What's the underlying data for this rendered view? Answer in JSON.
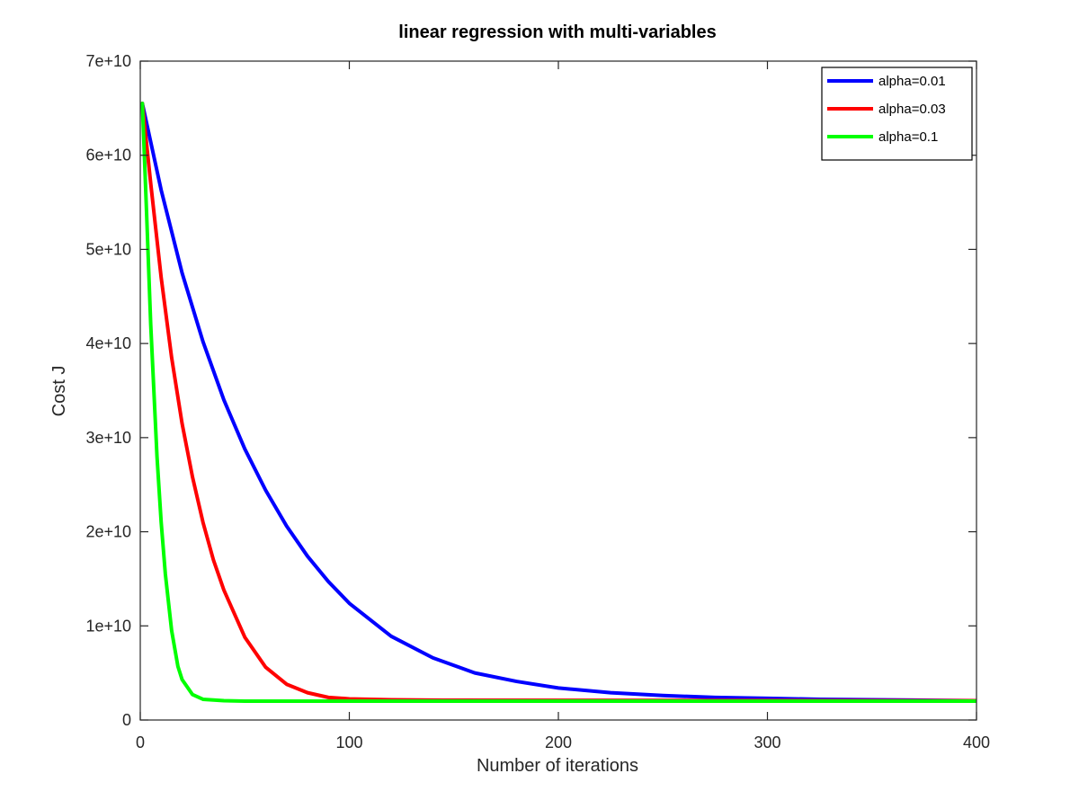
{
  "chart_data": {
    "type": "line",
    "title": "linear regression with multi-variables",
    "xlabel": "Number of iterations",
    "ylabel": "Cost J",
    "xlim": [
      0,
      400
    ],
    "ylim": [
      0,
      70000000000
    ],
    "x_ticks": [
      {
        "value": 0,
        "label": "0"
      },
      {
        "value": 100,
        "label": "100"
      },
      {
        "value": 200,
        "label": "200"
      },
      {
        "value": 300,
        "label": "300"
      },
      {
        "value": 400,
        "label": "400"
      }
    ],
    "y_ticks": [
      {
        "value": 0,
        "label": "0"
      },
      {
        "value": 10000000000,
        "label": "1e+10"
      },
      {
        "value": 20000000000,
        "label": "2e+10"
      },
      {
        "value": 30000000000,
        "label": "3e+10"
      },
      {
        "value": 40000000000,
        "label": "4e+10"
      },
      {
        "value": 50000000000,
        "label": "5e+10"
      },
      {
        "value": 60000000000,
        "label": "6e+10"
      },
      {
        "value": 70000000000,
        "label": "7e+10"
      }
    ],
    "grid": false,
    "legend_position": "top-right",
    "series": [
      {
        "name": "alpha=0.01",
        "color": "#0000ff",
        "x": [
          1,
          10,
          20,
          30,
          40,
          50,
          60,
          70,
          80,
          90,
          100,
          120,
          140,
          160,
          180,
          200,
          225,
          250,
          275,
          300,
          325,
          350,
          375,
          400
        ],
        "y": [
          65500000000,
          56300000000,
          47500000000,
          40200000000,
          34000000000,
          28800000000,
          24400000000,
          20600000000,
          17400000000,
          14700000000,
          12400000000,
          8900000000,
          6600000000,
          5000000000,
          4100000000,
          3400000000,
          2900000000,
          2600000000,
          2400000000,
          2300000000,
          2200000000,
          2150000000,
          2100000000,
          2050000000
        ]
      },
      {
        "name": "alpha=0.03",
        "color": "#ff0000",
        "x": [
          1,
          5,
          10,
          15,
          20,
          25,
          30,
          35,
          40,
          50,
          60,
          70,
          80,
          90,
          100,
          120,
          145,
          400
        ],
        "y": [
          65500000000,
          57000000000,
          47000000000,
          38500000000,
          31500000000,
          25800000000,
          21000000000,
          17000000000,
          13800000000,
          8800000000,
          5600000000,
          3800000000,
          2900000000,
          2400000000,
          2250000000,
          2150000000,
          2100000000,
          2050000000
        ]
      },
      {
        "name": "alpha=0.1",
        "color": "#00ff00",
        "x": [
          1,
          3,
          5,
          8,
          10,
          12,
          15,
          18,
          20,
          25,
          30,
          40,
          50,
          100,
          200,
          400
        ],
        "y": [
          65500000000,
          54000000000,
          42000000000,
          28000000000,
          21000000000,
          15500000000,
          9500000000,
          5700000000,
          4300000000,
          2700000000,
          2200000000,
          2050000000,
          2000000000,
          2000000000,
          2000000000,
          2000000000
        ]
      }
    ]
  }
}
